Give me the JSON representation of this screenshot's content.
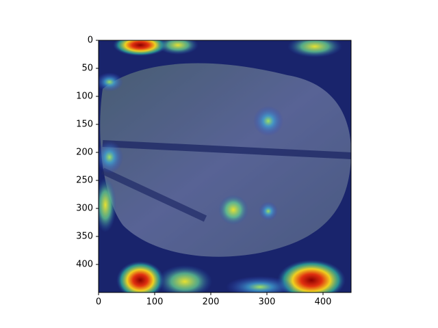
{
  "chart_data": {
    "type": "image",
    "xlim": [
      0,
      450
    ],
    "ylim": [
      450,
      0
    ],
    "xticks": [
      0,
      100,
      200,
      300,
      400
    ],
    "yticks": [
      0,
      50,
      100,
      150,
      200,
      250,
      300,
      350,
      400
    ]
  }
}
